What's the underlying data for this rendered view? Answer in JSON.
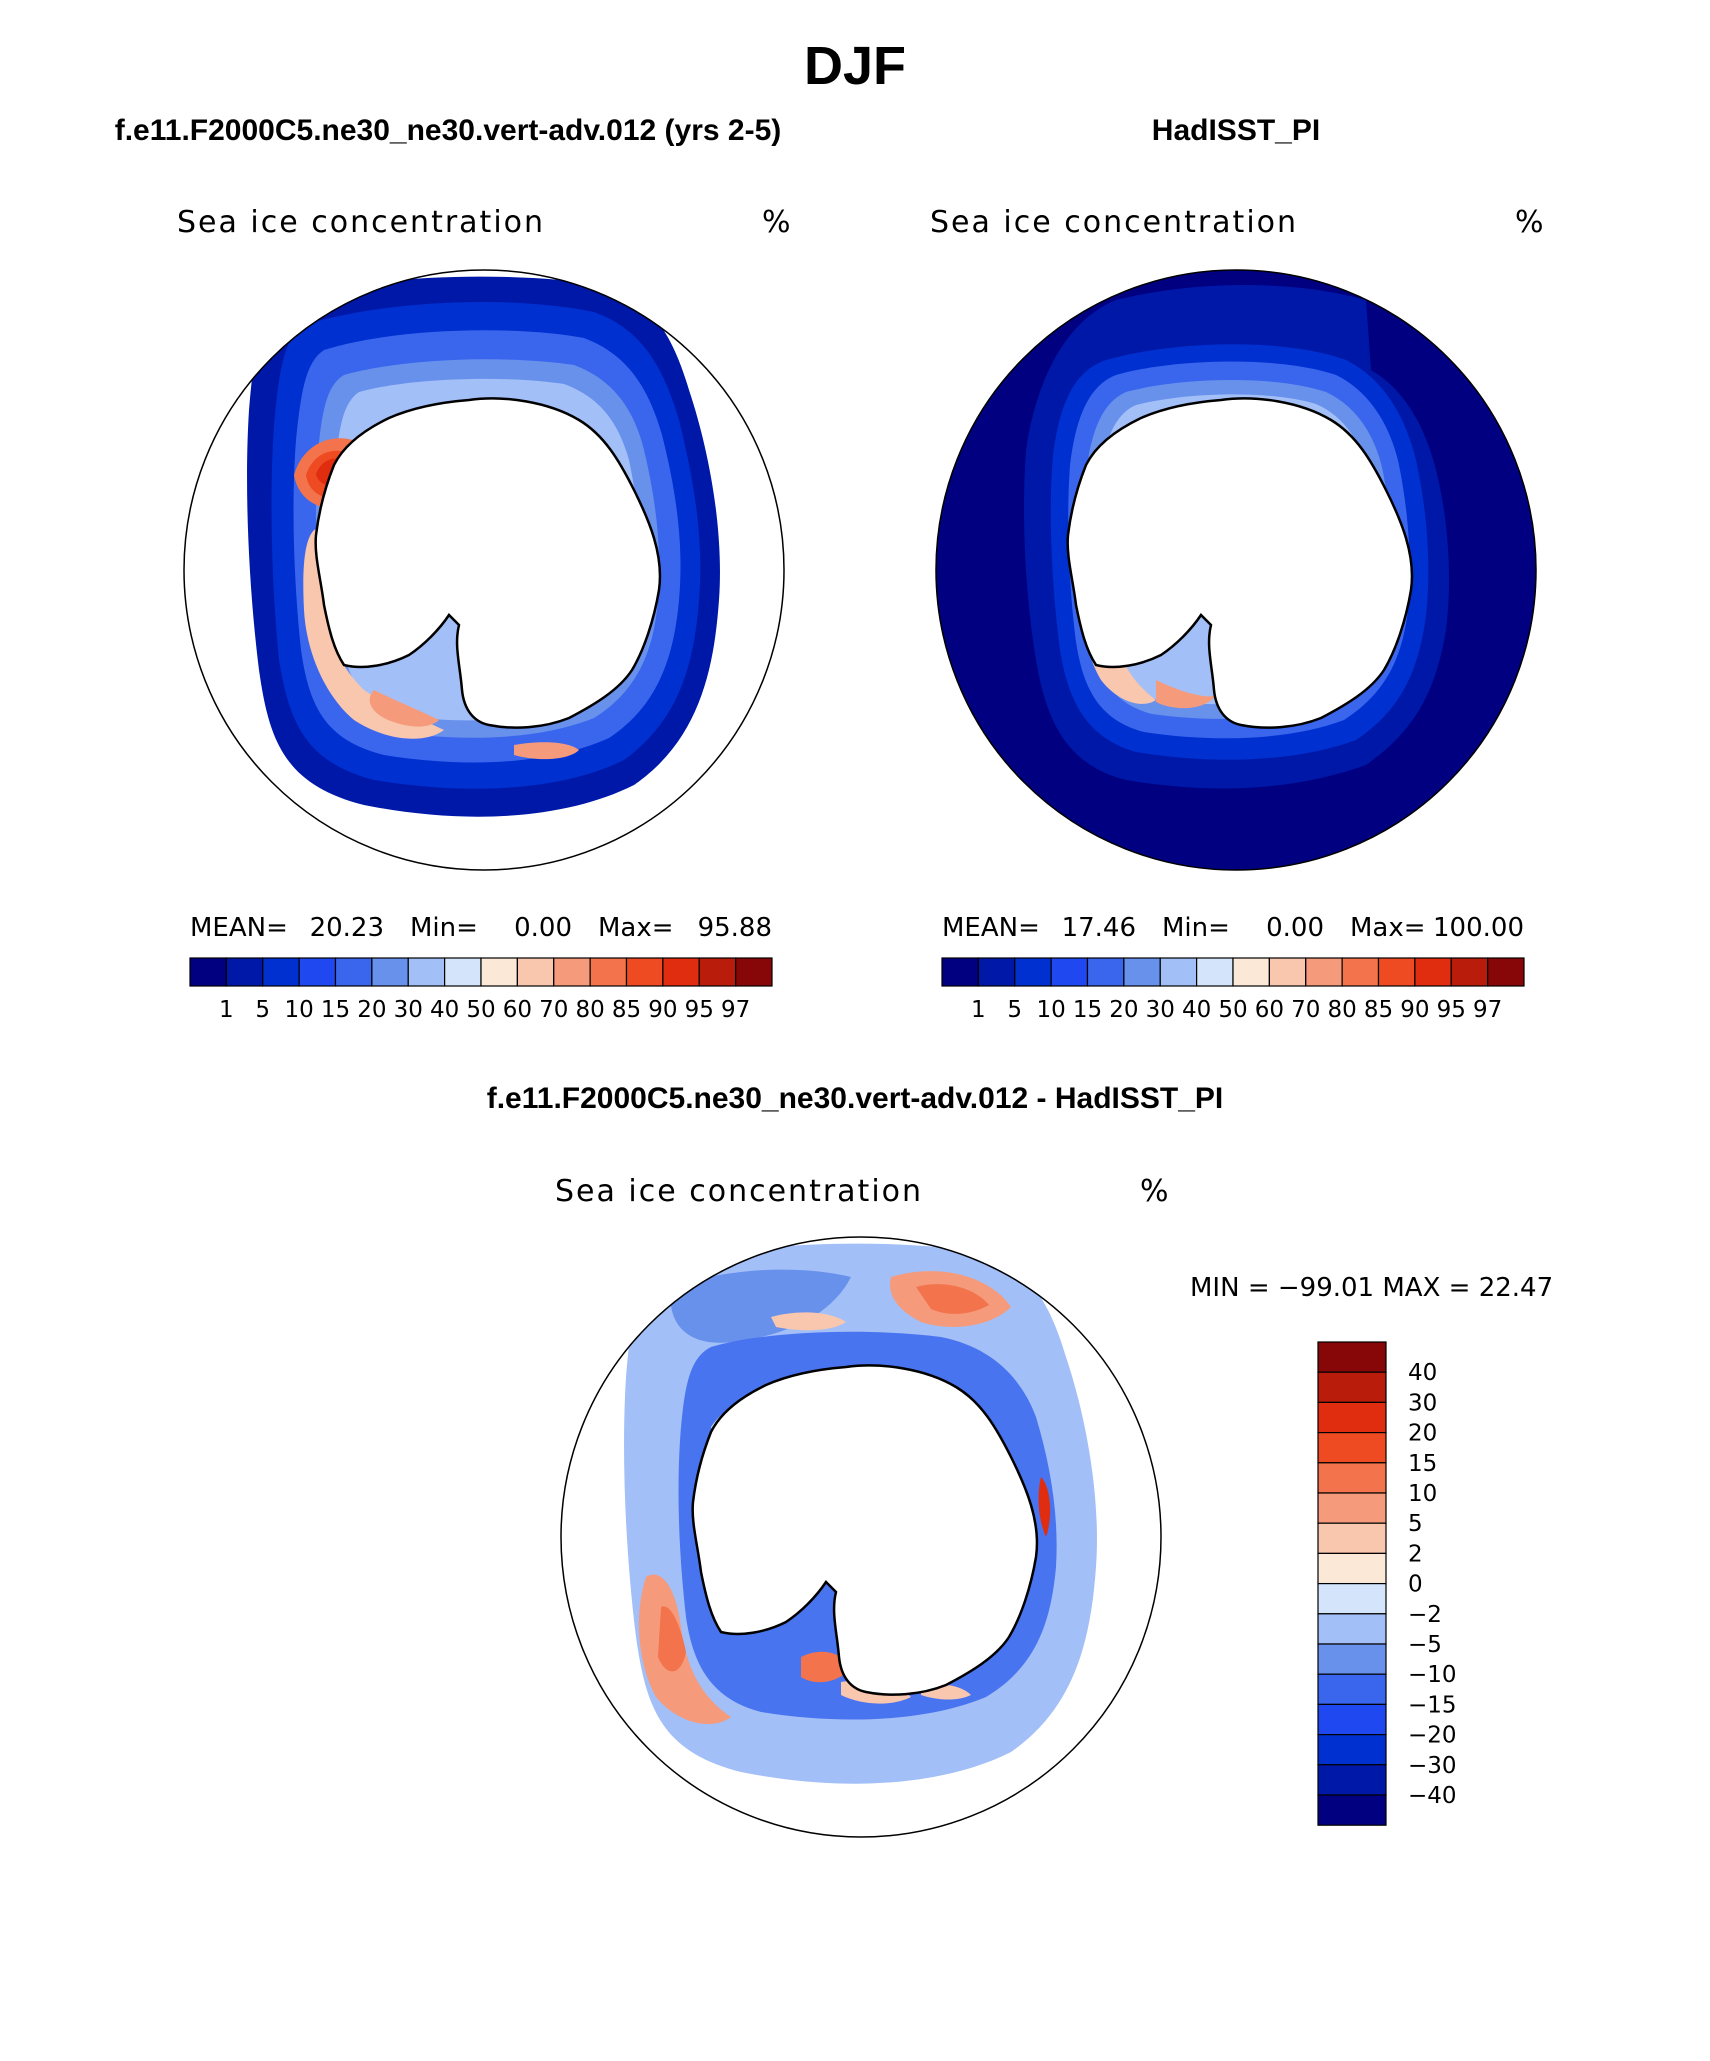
{
  "season": "DJF",
  "panels": [
    {
      "id": "model",
      "case_title": "f.e11.F2000C5.ne30_ne30.vert-adv.012 (yrs 2-5)",
      "field_label": "Sea ice concentration",
      "units": "%",
      "stats": {
        "mean_label": "MEAN=",
        "mean": "20.23",
        "min_label": "Min=",
        "min": "0.00",
        "max_label": "Max=",
        "max": "95.88"
      }
    },
    {
      "id": "obs",
      "case_title": "HadISST_PI",
      "field_label": "Sea ice concentration",
      "units": "%",
      "stats": {
        "mean_label": "MEAN=",
        "mean": "17.46",
        "min_label": "Min=",
        "min": "0.00",
        "max_label": "Max=",
        "max": "100.00"
      }
    }
  ],
  "abs_colorbar": {
    "labels": [
      "1",
      "5",
      "10",
      "15",
      "20",
      "30",
      "40",
      "50",
      "60",
      "70",
      "80",
      "85",
      "90",
      "95",
      "97"
    ],
    "colors": [
      "#000080",
      "#0018a8",
      "#0030d0",
      "#1f48f0",
      "#3a66ee",
      "#6891ec",
      "#a3bff7",
      "#d4e5fb",
      "#fbe8d6",
      "#f9c6ae",
      "#f59b7c",
      "#f2734c",
      "#ee4b22",
      "#e02d10",
      "#b91c0b",
      "#870607"
    ]
  },
  "diff": {
    "title": "f.e11.F2000C5.ne30_ne30.vert-adv.012 - HadISST_PI",
    "field_label": "Sea ice concentration",
    "units": "%",
    "range_text": "MIN = −99.01 MAX =   22.47",
    "labels": [
      "40",
      "30",
      "20",
      "15",
      "10",
      "5",
      "2",
      "0",
      "−2",
      "−5",
      "−10",
      "−15",
      "−20",
      "−30",
      "−40"
    ],
    "colors_top_to_bottom": [
      "#870607",
      "#b91c0b",
      "#e02d10",
      "#ee4b22",
      "#f2734c",
      "#f59b7c",
      "#f9c6ae",
      "#fbe8d6",
      "#d4e5fb",
      "#a3bff7",
      "#6891ec",
      "#3a66ee",
      "#1f48f0",
      "#0030d0",
      "#0018a8",
      "#000080"
    ]
  },
  "colors": {
    "antarctica_fill": "#ffffff",
    "coast": "#000000"
  }
}
